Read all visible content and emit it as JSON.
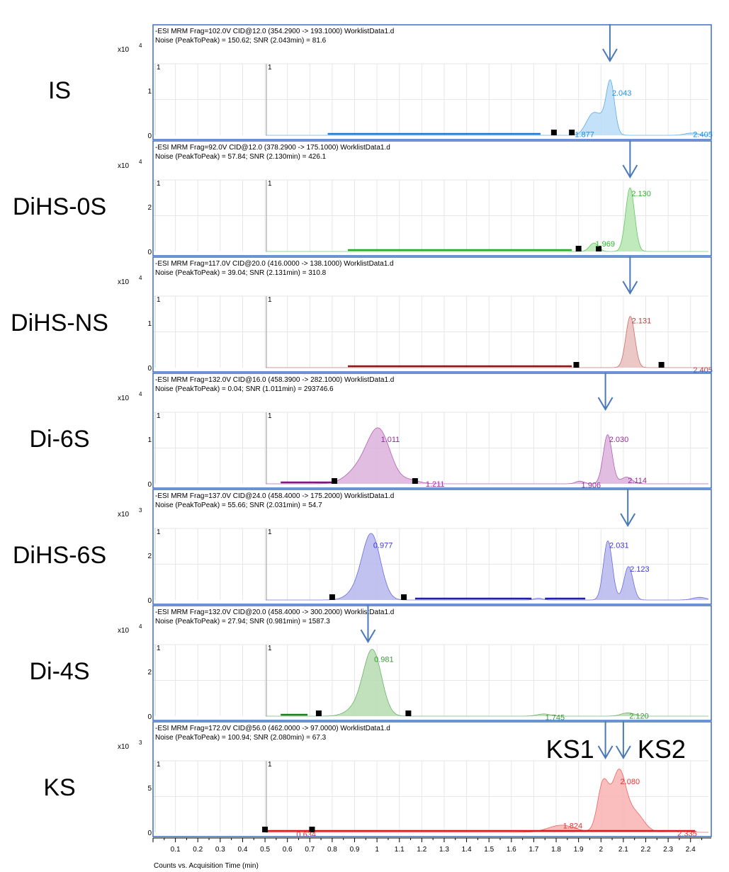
{
  "chart_data": {
    "type": "area",
    "x_axis": {
      "label": "Counts vs. Acquisition Time (min)",
      "range": [
        0,
        2.48
      ],
      "ticks": [
        "0.1",
        "0.2",
        "0.3",
        "0.4",
        "0.5",
        "0.6",
        "0.7",
        "0.8",
        "0.9",
        "1",
        "1.1",
        "1.2",
        "1.3",
        "1.4",
        "1.5",
        "1.6",
        "1.7",
        "1.8",
        "1.9",
        "2",
        "2.1",
        "2.2",
        "2.3",
        "2.4"
      ]
    },
    "panels": [
      {
        "compound": "IS",
        "header1": "-ESI MRM Frag=102.0V CID@12.0 (354.2900 -> 193.1000) WorklistData1.d",
        "header2": "Noise (PeakToPeak) = 150.62; SNR (2.043min) = 81.6",
        "scale_base": "x10",
        "scale_exp": "4",
        "y_max": 1.6,
        "y_ticks": [
          "0",
          "1"
        ],
        "color": "#1f8fe0",
        "fill": "#b9dcf8",
        "line_color": "#1a7ad6",
        "marker_text": "1",
        "arrows": [
          2.04
        ],
        "baseline_segments": [
          [
            0.78,
            1.73
          ]
        ],
        "markers": [
          1.79,
          1.87
        ],
        "peaks": [
          {
            "t": 1.963,
            "h": 0.45,
            "w": 0.03
          },
          {
            "t": 2.043,
            "h": 1.0,
            "w": 0.018
          },
          {
            "t": 2.02,
            "h": 0.3,
            "w": 0.03
          },
          {
            "t": 2.405,
            "h": 0.05,
            "w": 0.03
          }
        ],
        "peak_labels": [
          {
            "t": 2.043,
            "y": 0.95,
            "text": "2.043"
          },
          {
            "t": 1.877,
            "y": 0.02,
            "text": "1.877"
          },
          {
            "t": 2.405,
            "y": 0.02,
            "text": "2.405"
          }
        ]
      },
      {
        "compound": "DiHS-0S",
        "header1": "-ESI MRM Frag=92.0V CID@12.0 (378.2900 -> 175.1000) WorklistData1.d",
        "header2": "Noise (PeakToPeak) = 57.84; SNR (2.130min) = 426.1",
        "scale_base": "x10",
        "scale_exp": "4",
        "y_max": 3.2,
        "y_ticks": [
          "0",
          "2"
        ],
        "color": "#2db52d",
        "fill": "#b6e6b0",
        "line_color": "#2aa82a",
        "marker_text": "1",
        "arrows": [
          2.13
        ],
        "baseline_segments": [
          [
            0.87,
            1.87
          ]
        ],
        "markers": [
          1.9,
          1.99
        ],
        "peaks": [
          {
            "t": 1.969,
            "h": 0.38,
            "w": 0.02
          },
          {
            "t": 2.13,
            "h": 2.85,
            "w": 0.02
          }
        ],
        "peak_labels": [
          {
            "t": 2.13,
            "y": 2.6,
            "text": "2.130"
          },
          {
            "t": 1.969,
            "y": 0.35,
            "text": "1.969"
          }
        ]
      },
      {
        "compound": "DiHS-NS",
        "header1": "-ESI MRM Frag=117.0V CID@20.0 (416.0000 -> 138.1000) WorklistData1.d",
        "header2": "Noise (PeakToPeak) = 39.04; SNR (2.131min) = 310.8",
        "scale_base": "x10",
        "scale_exp": "4",
        "y_max": 1.6,
        "y_ticks": [
          "0",
          "1"
        ],
        "color": "#c03a3a",
        "fill": "#e8bebb",
        "line_color": "#8a1a1a",
        "marker_text": "1",
        "arrows": [
          2.13
        ],
        "baseline_segments": [
          [
            0.87,
            1.87
          ]
        ],
        "markers": [
          1.89,
          2.27
        ],
        "peaks": [
          {
            "t": 2.131,
            "h": 1.15,
            "w": 0.02
          }
        ],
        "peak_labels": [
          {
            "t": 2.131,
            "y": 1.05,
            "text": "2.131"
          },
          {
            "t": 2.405,
            "y": -0.05,
            "text": "2.405"
          }
        ]
      },
      {
        "compound": "Di-6S",
        "header1": "-ESI MRM Frag=132.0V CID@16.0 (458.3900 -> 282.1000) WorklistData1.d",
        "header2": "Noise (PeakToPeak) = 0.04; SNR (1.011min) = 293746.6",
        "scale_base": "x10",
        "scale_exp": "4",
        "y_max": 1.6,
        "y_ticks": [
          "0",
          "1"
        ],
        "color": "#9a2a9a",
        "fill": "#dcb3dc",
        "line_color": "#7a1a7a",
        "marker_text": "1",
        "arrows": [
          2.02
        ],
        "baseline_segments": [
          [
            0.57,
            0.8
          ]
        ],
        "markers": [
          0.81,
          1.17
        ],
        "peaks": [
          {
            "t": 1.011,
            "h": 1.1,
            "w": 0.05
          },
          {
            "t": 0.93,
            "h": 0.35,
            "w": 0.06
          },
          {
            "t": 1.15,
            "h": 0.08,
            "w": 0.04
          },
          {
            "t": 1.906,
            "h": 0.06,
            "w": 0.02
          },
          {
            "t": 2.03,
            "h": 1.1,
            "w": 0.02
          },
          {
            "t": 2.114,
            "h": 0.15,
            "w": 0.025
          }
        ],
        "peak_labels": [
          {
            "t": 1.011,
            "y": 1.0,
            "text": "1.011"
          },
          {
            "t": 2.03,
            "y": 1.0,
            "text": "2.030"
          },
          {
            "t": 1.211,
            "y": 0.0,
            "text": "1.211"
          },
          {
            "t": 1.906,
            "y": -0.02,
            "text": "1.906"
          },
          {
            "t": 2.114,
            "y": 0.08,
            "text": "2.114"
          }
        ]
      },
      {
        "compound": "DiHS-6S",
        "header1": "-ESI MRM Frag=137.0V CID@24.0 (458.4000 -> 175.2000) WorklistData1.d",
        "header2": "Noise (PeakToPeak) = 55.66; SNR (2.031min) = 54.7",
        "scale_base": "x10",
        "scale_exp": "3",
        "y_max": 3.2,
        "y_ticks": [
          "0",
          "2"
        ],
        "color": "#3a3ad0",
        "fill": "#b7b7ee",
        "line_color": "#2020a8",
        "marker_text": "1",
        "arrows": [
          2.12
        ],
        "baseline_segments": [
          [
            1.17,
            1.69
          ],
          [
            1.75,
            1.93
          ]
        ],
        "markers": [
          0.8,
          1.12
        ],
        "peaks": [
          {
            "t": 0.977,
            "h": 2.65,
            "w": 0.04
          },
          {
            "t": 0.93,
            "h": 0.5,
            "w": 0.05
          },
          {
            "t": 2.031,
            "h": 2.65,
            "w": 0.02
          },
          {
            "t": 2.123,
            "h": 1.5,
            "w": 0.02
          },
          {
            "t": 1.72,
            "h": 0.08,
            "w": 0.02
          },
          {
            "t": 2.44,
            "h": 0.12,
            "w": 0.03
          }
        ],
        "peak_labels": [
          {
            "t": 0.977,
            "y": 2.45,
            "text": "0.977"
          },
          {
            "t": 2.031,
            "y": 2.45,
            "text": "2.031"
          },
          {
            "t": 2.123,
            "y": 1.4,
            "text": "2.123"
          }
        ]
      },
      {
        "compound": "Di-4S",
        "header1": "-ESI MRM Frag=132.0V CID@20.0 (458.4000 -> 300.2000) WorklistData1.d",
        "header2": "Noise (PeakToPeak) = 27.94; SNR (0.981min) = 1587.3",
        "scale_base": "x10",
        "scale_exp": "4",
        "y_max": 3.2,
        "y_ticks": [
          "0",
          "2"
        ],
        "color": "#3a9a3a",
        "fill": "#b6dcb0",
        "line_color": "#1e7a1e",
        "marker_text": "1",
        "arrows": [
          0.96
        ],
        "baseline_segments": [
          [
            0.57,
            0.69
          ]
        ],
        "markers": [
          0.74,
          1.14
        ],
        "peaks": [
          {
            "t": 0.981,
            "h": 2.8,
            "w": 0.04
          },
          {
            "t": 0.92,
            "h": 0.4,
            "w": 0.05
          },
          {
            "t": 1.745,
            "h": 0.1,
            "w": 0.03
          },
          {
            "t": 2.12,
            "h": 0.15,
            "w": 0.03
          }
        ],
        "peak_labels": [
          {
            "t": 0.981,
            "y": 2.55,
            "text": "0.981"
          },
          {
            "t": 1.745,
            "y": -0.05,
            "text": "1.745"
          },
          {
            "t": 2.12,
            "y": 0.02,
            "text": "2.120"
          }
        ]
      },
      {
        "compound": "KS",
        "header1": "-ESI MRM Frag=172.0V CID@56.0 (462.0000 -> 97.0000) WorklistData1.d",
        "header2": "Noise (PeakToPeak) = 100.94; SNR (2.080min) = 67.3",
        "scale_base": "x10",
        "scale_exp": "3",
        "y_max": 8.0,
        "y_ticks": [
          "0",
          "5"
        ],
        "color": "#e83030",
        "fill": "#f9b3b3",
        "line_color": "#d81a1a",
        "marker_text": "1",
        "arrows": [
          2.02,
          2.1
        ],
        "baseline_segments": [
          [
            0.5,
            2.42
          ]
        ],
        "markers": [
          0.5,
          0.71
        ],
        "peaks": [
          {
            "t": 2.01,
            "h": 5.5,
            "w": 0.025
          },
          {
            "t": 2.08,
            "h": 6.5,
            "w": 0.03
          },
          {
            "t": 2.15,
            "h": 2.2,
            "w": 0.04
          },
          {
            "t": 1.824,
            "h": 0.8,
            "w": 0.06
          },
          {
            "t": 2.335,
            "h": 0.2,
            "w": 0.04
          }
        ],
        "peak_labels": [
          {
            "t": 2.08,
            "y": 5.7,
            "text": "2.080"
          },
          {
            "t": 1.824,
            "y": 0.75,
            "text": "1.824"
          },
          {
            "t": 0.634,
            "y": -0.2,
            "text": "0.634"
          },
          {
            "t": 2.335,
            "y": -0.1,
            "text": "2.335"
          }
        ],
        "extra_labels": [
          {
            "id": "ks1",
            "text": "KS1"
          },
          {
            "id": "ks2",
            "text": "KS2"
          }
        ]
      }
    ]
  },
  "colors": {
    "panel_border": "#3c6fc4",
    "arrow": "#4a79b8",
    "grid": "#e6e6e6"
  }
}
